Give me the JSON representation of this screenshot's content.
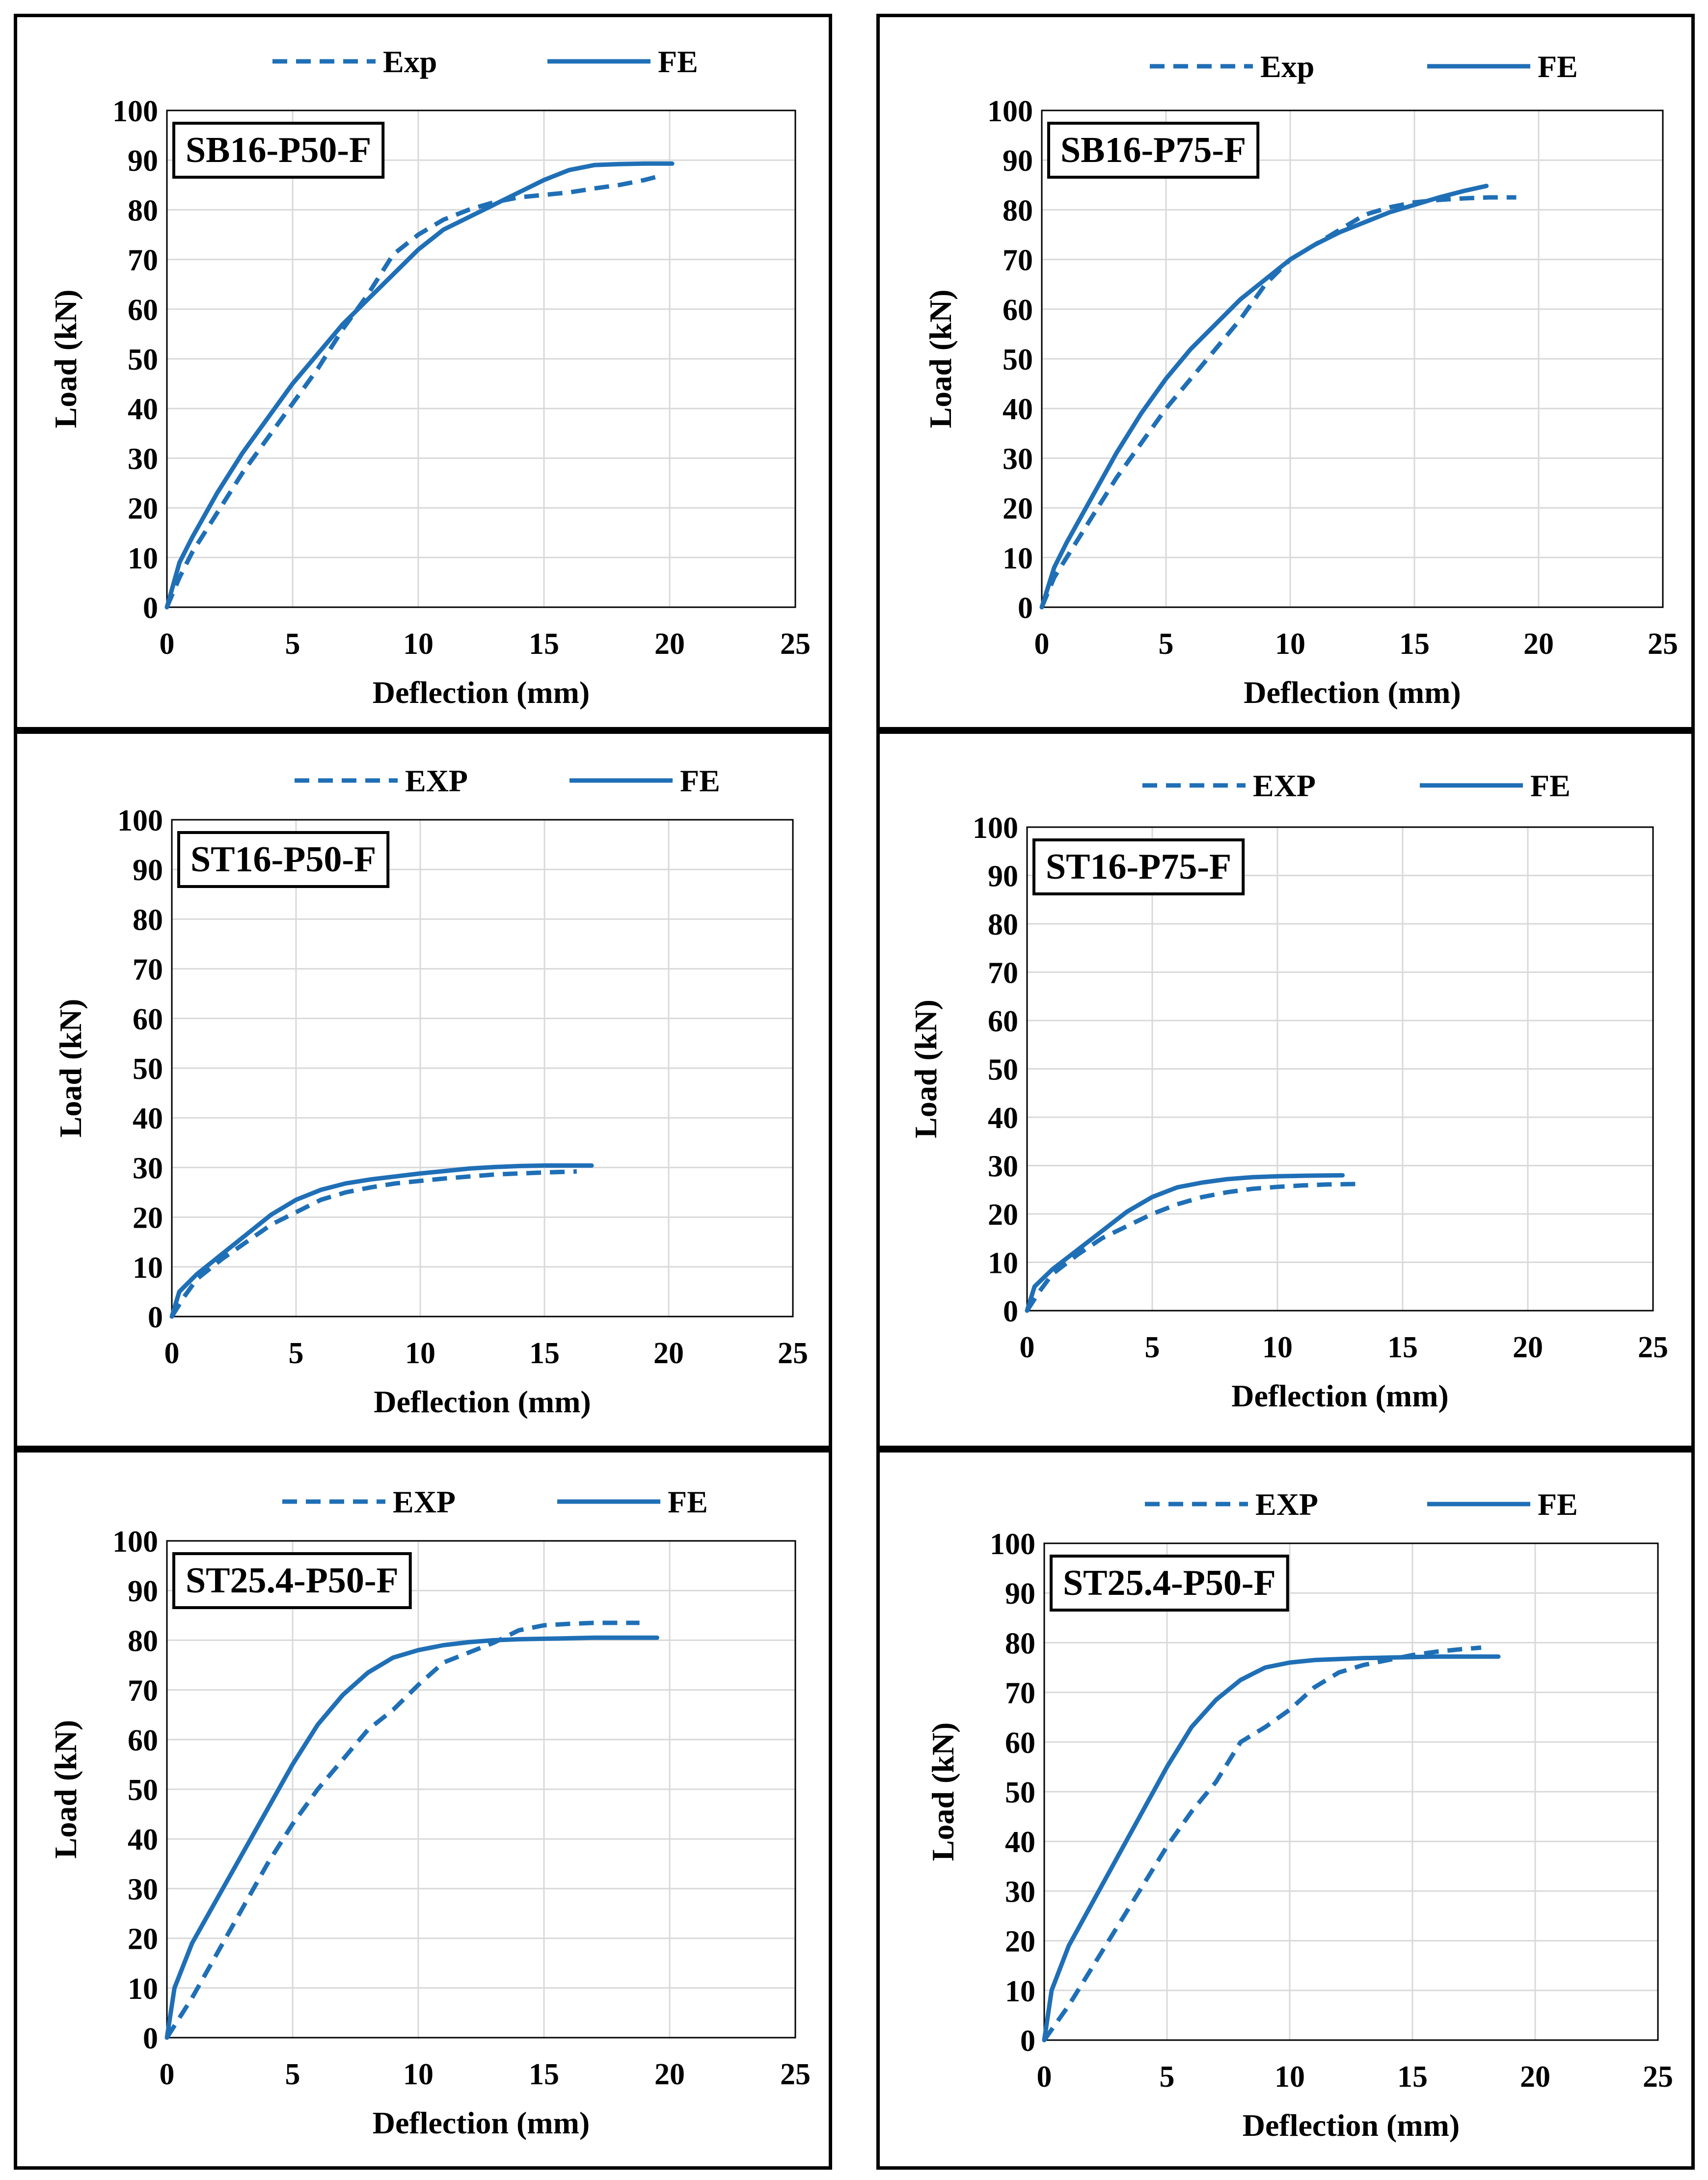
{
  "colors": {
    "series": "#1F6FB6",
    "grid": "#D9D9D9",
    "frame": "#000000"
  },
  "chart_data": [
    {
      "type": "line",
      "title": "SB16-P50-F",
      "xlabel": "Deflection (mm)",
      "ylabel": "Load (kN)",
      "xlim": [
        0,
        25
      ],
      "ylim": [
        0,
        100
      ],
      "xticks": [
        "0",
        "5",
        "10",
        "15",
        "20",
        "25"
      ],
      "yticks": [
        "0",
        "10",
        "20",
        "30",
        "40",
        "50",
        "60",
        "70",
        "80",
        "90",
        "100"
      ],
      "grid": true,
      "legend": "top",
      "series": [
        {
          "name": "Exp",
          "style": "dashed",
          "x": [
            0,
            0.5,
            1,
            2,
            3,
            4,
            5,
            6,
            7,
            8,
            9,
            10,
            11,
            12,
            13,
            14,
            15,
            16,
            17,
            18,
            19,
            19.6
          ],
          "y": [
            0,
            6,
            11,
            19,
            27,
            34,
            41,
            48,
            56,
            63,
            71,
            75,
            78,
            80,
            81.5,
            82.5,
            83,
            83.5,
            84.3,
            85,
            86,
            86.8
          ]
        },
        {
          "name": "FE",
          "style": "solid",
          "x": [
            0,
            0.5,
            1,
            2,
            3,
            4,
            5,
            6,
            7,
            8,
            9,
            10,
            11,
            12,
            13,
            14,
            15,
            16,
            17,
            18,
            19,
            20.1
          ],
          "y": [
            0,
            9,
            14,
            23,
            31,
            38,
            45,
            51,
            57,
            62,
            67,
            72,
            76,
            78.5,
            81,
            83.5,
            86,
            88,
            89,
            89.2,
            89.3,
            89.3
          ]
        }
      ]
    },
    {
      "type": "line",
      "title": "SB16-P75-F",
      "xlabel": "Deflection (mm)",
      "ylabel": "Load (kN)",
      "xlim": [
        0,
        25
      ],
      "ylim": [
        0,
        100
      ],
      "xticks": [
        "0",
        "5",
        "10",
        "15",
        "20",
        "25"
      ],
      "yticks": [
        "0",
        "10",
        "20",
        "30",
        "40",
        "50",
        "60",
        "70",
        "80",
        "90",
        "100"
      ],
      "grid": true,
      "legend": "top",
      "series": [
        {
          "name": "Exp",
          "style": "dashed",
          "x": [
            0,
            0.5,
            1,
            2,
            3,
            4,
            5,
            6,
            7,
            8,
            9,
            10,
            11,
            12,
            13,
            14,
            15,
            16,
            17,
            18,
            19.1
          ],
          "y": [
            0,
            6,
            10,
            18,
            26,
            33,
            40,
            46,
            52,
            58,
            65,
            70,
            73,
            76,
            79,
            80.5,
            81.5,
            82,
            82.3,
            82.5,
            82.5
          ]
        },
        {
          "name": "FE",
          "style": "solid",
          "x": [
            0,
            0.5,
            1,
            2,
            3,
            4,
            5,
            6,
            7,
            8,
            9,
            10,
            11,
            12,
            13,
            14,
            15,
            16,
            17,
            17.9
          ],
          "y": [
            0,
            8,
            13,
            22,
            31,
            39,
            46,
            52,
            57,
            62,
            66,
            70,
            73,
            75.5,
            77.5,
            79.5,
            81,
            82.5,
            83.8,
            84.8
          ]
        }
      ]
    },
    {
      "type": "line",
      "title": "ST16-P50-F",
      "xlabel": "Deflection (mm)",
      "ylabel": "Load (kN)",
      "xlim": [
        0,
        25
      ],
      "ylim": [
        0,
        100
      ],
      "xticks": [
        "0",
        "5",
        "10",
        "15",
        "20",
        "25"
      ],
      "yticks": [
        "0",
        "10",
        "20",
        "30",
        "40",
        "50",
        "60",
        "70",
        "80",
        "90",
        "100"
      ],
      "grid": true,
      "legend": "top",
      "series": [
        {
          "name": "EXP",
          "style": "dashed",
          "x": [
            0,
            0.5,
            1,
            2,
            3,
            4,
            5,
            6,
            7,
            8,
            9,
            10,
            11,
            12,
            13,
            14,
            15,
            16.3
          ],
          "y": [
            0,
            4,
            7.5,
            11.5,
            15,
            18.5,
            21,
            23.5,
            25,
            26,
            26.8,
            27.3,
            27.8,
            28.2,
            28.6,
            28.8,
            29,
            29.2
          ]
        },
        {
          "name": "FE",
          "style": "solid",
          "x": [
            0,
            0.3,
            1,
            2,
            3,
            4,
            5,
            6,
            7,
            8,
            9,
            10,
            11,
            12,
            13,
            14,
            15,
            16,
            16.9
          ],
          "y": [
            0,
            5,
            8.5,
            12.5,
            16.5,
            20.5,
            23.5,
            25.5,
            26.8,
            27.6,
            28.2,
            28.8,
            29.3,
            29.8,
            30.1,
            30.3,
            30.4,
            30.4,
            30.4
          ]
        }
      ]
    },
    {
      "type": "line",
      "title": "ST16-P75-F",
      "xlabel": "Deflection (mm)",
      "ylabel": "Load (kN)",
      "xlim": [
        0,
        25
      ],
      "ylim": [
        0,
        100
      ],
      "xticks": [
        "0",
        "5",
        "10",
        "15",
        "20",
        "25"
      ],
      "yticks": [
        "0",
        "10",
        "20",
        "30",
        "40",
        "50",
        "60",
        "70",
        "80",
        "90",
        "100"
      ],
      "grid": true,
      "legend": "top",
      "series": [
        {
          "name": "EXP",
          "style": "dashed",
          "x": [
            0,
            0.5,
            1,
            2,
            3,
            4,
            5,
            6,
            7,
            8,
            9,
            10,
            11,
            12,
            13.3
          ],
          "y": [
            0,
            4,
            7.5,
            11.5,
            15,
            17.5,
            20,
            22,
            23.5,
            24.5,
            25.2,
            25.6,
            25.9,
            26.1,
            26.2
          ]
        },
        {
          "name": "FE",
          "style": "solid",
          "x": [
            0,
            0.3,
            1,
            2,
            3,
            4,
            5,
            6,
            7,
            8,
            9,
            10,
            11,
            12.6
          ],
          "y": [
            0,
            5,
            8.5,
            12.5,
            16.5,
            20.5,
            23.5,
            25.5,
            26.5,
            27.2,
            27.6,
            27.8,
            27.9,
            28
          ]
        }
      ]
    },
    {
      "type": "line",
      "title": "ST25.4-P50-F",
      "xlabel": "Deflection (mm)",
      "ylabel": "Load (kN)",
      "xlim": [
        0,
        25
      ],
      "ylim": [
        0,
        100
      ],
      "xticks": [
        "0",
        "5",
        "10",
        "15",
        "20",
        "25"
      ],
      "yticks": [
        "0",
        "10",
        "20",
        "30",
        "40",
        "50",
        "60",
        "70",
        "80",
        "90",
        "100"
      ],
      "grid": true,
      "legend": "top",
      "series": [
        {
          "name": "EXP",
          "style": "dashed",
          "x": [
            0,
            1,
            2,
            3,
            4,
            5,
            6,
            7,
            8,
            9,
            10,
            11,
            12,
            13,
            14,
            15,
            16,
            17,
            18,
            18.8
          ],
          "y": [
            0,
            8,
            17,
            26,
            35,
            43,
            50,
            56,
            62,
            66,
            71,
            75.5,
            77.5,
            79.5,
            82,
            83,
            83.3,
            83.5,
            83.5,
            83.5
          ]
        },
        {
          "name": "FE",
          "style": "solid",
          "x": [
            0,
            0.3,
            1,
            2,
            3,
            4,
            5,
            6,
            7,
            8,
            9,
            10,
            11,
            12,
            13,
            14,
            15,
            16,
            17,
            18,
            19.5
          ],
          "y": [
            0,
            10,
            19,
            28,
            37,
            46,
            55,
            63,
            69,
            73.5,
            76.5,
            78,
            79,
            79.6,
            80,
            80.2,
            80.3,
            80.4,
            80.5,
            80.5,
            80.5
          ]
        }
      ]
    },
    {
      "type": "line",
      "title": "ST25.4-P50-F",
      "xlabel": "Deflection (mm)",
      "ylabel": "Load (kN)",
      "xlim": [
        0,
        25
      ],
      "ylim": [
        0,
        100
      ],
      "xticks": [
        "0",
        "5",
        "10",
        "15",
        "20",
        "25"
      ],
      "yticks": [
        "0",
        "10",
        "20",
        "30",
        "40",
        "50",
        "60",
        "70",
        "80",
        "90",
        "100"
      ],
      "grid": true,
      "legend": "top",
      "series": [
        {
          "name": "EXP",
          "style": "dashed",
          "x": [
            0,
            1,
            2,
            3,
            4,
            5,
            6,
            7,
            8,
            9,
            10,
            11,
            12,
            13,
            14,
            15,
            16,
            17,
            17.8
          ],
          "y": [
            0,
            7,
            15,
            23,
            31,
            39,
            46,
            52,
            60,
            63,
            66.5,
            71,
            74,
            75.5,
            76.5,
            77.5,
            78.2,
            78.7,
            79
          ]
        },
        {
          "name": "FE",
          "style": "solid",
          "x": [
            0,
            0.3,
            1,
            2,
            3,
            4,
            5,
            6,
            7,
            8,
            9,
            10,
            11,
            12,
            13,
            14,
            15,
            16,
            17,
            18.5
          ],
          "y": [
            0,
            10,
            19,
            28,
            37,
            46,
            55,
            63,
            68.5,
            72.5,
            75,
            76,
            76.5,
            76.7,
            76.9,
            77,
            77.1,
            77.2,
            77.2,
            77.2
          ]
        }
      ]
    }
  ]
}
